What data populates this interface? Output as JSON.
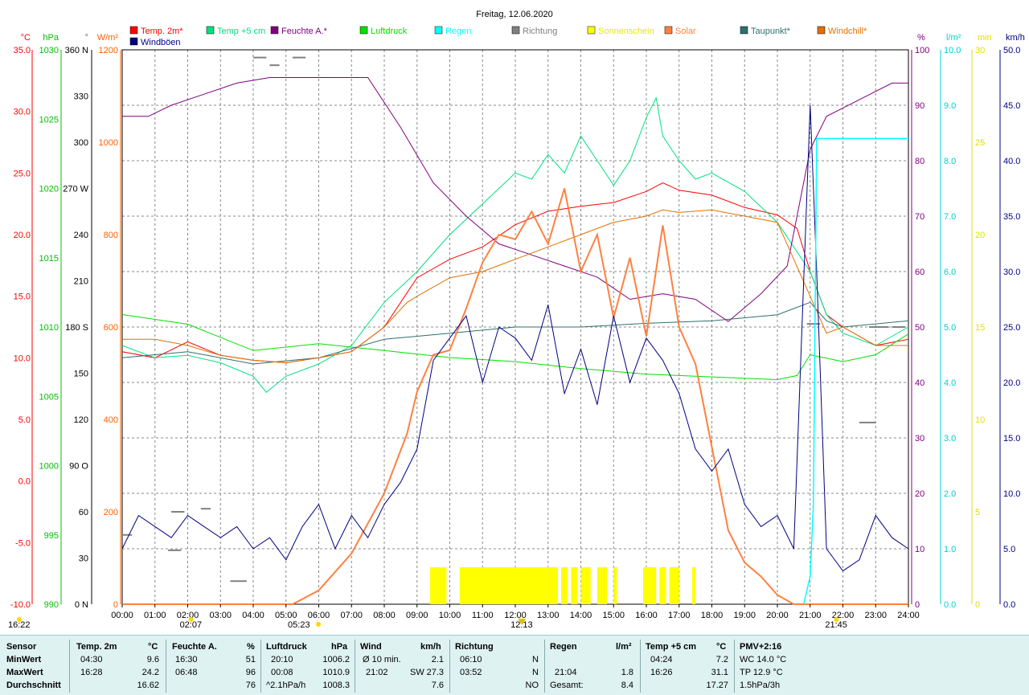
{
  "chart_data": {
    "type": "line",
    "title": "Freitag, 12.06.2020",
    "x_axis": {
      "ticks": [
        "00:00",
        "01:00",
        "02:00",
        "03:00",
        "04:00",
        "05:00",
        "06:00",
        "07:00",
        "08:00",
        "09:00",
        "10:00",
        "11:00",
        "12:00",
        "13:00",
        "14:00",
        "15:00",
        "16:00",
        "17:00",
        "18:00",
        "19:00",
        "20:00",
        "21:00",
        "22:00",
        "23:00",
        "24:00"
      ],
      "range_hours": [
        0,
        24
      ]
    },
    "legend": [
      {
        "name": "Temp. 2m*",
        "color": "#ff0000"
      },
      {
        "name": "Windböen",
        "color": "#000080"
      },
      {
        "name": "Temp +5 cm",
        "color": "#00e080"
      },
      {
        "name": "Feuchte A.*",
        "color": "#800080"
      },
      {
        "name": "Luftdruck",
        "color": "#00e000"
      },
      {
        "name": "Regen",
        "color": "#00ffff"
      },
      {
        "name": "Richtung",
        "color": "#808080"
      },
      {
        "name": "Sonnenschein",
        "color": "#ffff00"
      },
      {
        "name": "Solar",
        "color": "#ff8040"
      },
      {
        "name": "Taupunkt*",
        "color": "#2f6f6f"
      },
      {
        "name": "Windchill*",
        "color": "#e07000"
      }
    ],
    "left_axes": [
      {
        "unit": "°C",
        "color": "#ff0000",
        "ticks": [
          "35.0",
          "30.0",
          "25.0",
          "20.0",
          "15.0",
          "10.0",
          "5.0",
          "0.0",
          "-5.0",
          "-10.0"
        ]
      },
      {
        "unit": "hPa",
        "color": "#00c000",
        "ticks": [
          "1030",
          "1025",
          "1020",
          "1015",
          "1010",
          "1005",
          "1000",
          "995",
          "990"
        ]
      },
      {
        "unit": "°",
        "color": "#000000",
        "ticks": [
          "360 N",
          "330",
          "300",
          "270 W",
          "240",
          "210",
          "180 S",
          "150",
          "120",
          "90  O",
          "60",
          "30",
          "0   N"
        ]
      },
      {
        "unit": "W/m²",
        "color": "#ff6000",
        "ticks": [
          "1200",
          "1000",
          "800",
          "600",
          "400",
          "200",
          "0"
        ]
      }
    ],
    "right_axes": [
      {
        "unit": "%",
        "color": "#800080",
        "ticks": [
          "100",
          "90",
          "80",
          "70",
          "60",
          "50",
          "40",
          "30",
          "20",
          "10",
          "0"
        ]
      },
      {
        "unit": "l/m²",
        "color": "#00d0d0",
        "ticks": [
          "10.0",
          "9.0",
          "8.0",
          "7.0",
          "6.0",
          "5.0",
          "4.0",
          "3.0",
          "2.0",
          "1.0",
          "0.0"
        ]
      },
      {
        "unit": "min",
        "color": "#e0e000",
        "ticks": [
          "30",
          "25",
          "20",
          "15",
          "10",
          "5",
          "0"
        ]
      },
      {
        "unit": "km/h",
        "color": "#000080",
        "ticks": [
          "50.0",
          "45.0",
          "40.0",
          "35.0",
          "30.0",
          "25.0",
          "20.0",
          "15.0",
          "10.0",
          "5.0",
          "0.0"
        ]
      }
    ],
    "series": [
      {
        "name": "Temp. 2m*",
        "axis": "°C",
        "color": "#ff0000",
        "x": [
          0,
          1,
          2,
          3,
          4,
          5,
          6,
          7,
          8,
          9,
          10,
          11,
          12,
          13,
          14,
          15,
          16,
          16.5,
          17,
          18,
          19,
          20,
          20.6,
          21,
          21.5,
          22,
          23,
          24
        ],
        "y": [
          10.5,
          10.0,
          11.3,
          10.2,
          9.8,
          9.6,
          10.0,
          10.5,
          12.5,
          16.5,
          18.0,
          19.0,
          20.8,
          21.9,
          22.3,
          22.6,
          23.5,
          24.2,
          23.6,
          23.2,
          22.2,
          21.6,
          20.5,
          17.0,
          13.5,
          12.5,
          11.0,
          11.5
        ]
      },
      {
        "name": "Temp +5 cm",
        "axis": "°C",
        "color": "#00e080",
        "x": [
          0,
          1,
          2,
          3,
          4,
          4.4,
          5,
          6,
          7,
          8,
          9,
          10,
          11,
          12,
          12.5,
          13,
          13.5,
          14,
          14.5,
          15,
          15.5,
          16,
          16.3,
          16.5,
          17,
          17.5,
          18,
          19,
          20,
          21,
          21.5,
          22,
          23,
          24
        ],
        "y": [
          11.0,
          10.0,
          10.2,
          9.6,
          8.5,
          7.2,
          8.5,
          9.5,
          11.0,
          14.5,
          17.0,
          20.0,
          22.5,
          25.0,
          24.5,
          26.5,
          25.0,
          28.0,
          26.0,
          24.0,
          26.0,
          29.5,
          31.1,
          28.0,
          26.0,
          24.5,
          25.0,
          23.5,
          21.0,
          17.0,
          13.5,
          12.0,
          11.0,
          12.5
        ]
      },
      {
        "name": "Feuchte A.*",
        "axis": "%",
        "color": "#800080",
        "x": [
          0,
          0.8,
          1.5,
          2.5,
          3.5,
          4.5,
          5.5,
          6.5,
          7.5,
          8.5,
          9.5,
          10.5,
          11.5,
          12.5,
          13.5,
          14.5,
          15.5,
          16.5,
          17.5,
          18.5,
          19.5,
          20.3,
          21,
          21.5,
          22.5,
          23.5,
          24
        ],
        "y": [
          88,
          88,
          90,
          92,
          94,
          95,
          95,
          95,
          95,
          86,
          76,
          70,
          65,
          63,
          61,
          59,
          55,
          56,
          55,
          51,
          56,
          61,
          82,
          88,
          91,
          94,
          94
        ]
      },
      {
        "name": "Luftdruck",
        "axis": "hPa",
        "color": "#00e000",
        "x": [
          0,
          2,
          4,
          6,
          8,
          10,
          12,
          14,
          16,
          18,
          20,
          20.6,
          21,
          22,
          23,
          24
        ],
        "y": [
          1010.9,
          1010.2,
          1008.3,
          1008.8,
          1008.3,
          1007.8,
          1007.5,
          1007.0,
          1006.6,
          1006.4,
          1006.2,
          1006.5,
          1008.0,
          1007.5,
          1008.0,
          1009.5
        ]
      },
      {
        "name": "Taupunkt*",
        "axis": "°C",
        "color": "#2f6f6f",
        "x": [
          0,
          2,
          4,
          6,
          8,
          10,
          12,
          14,
          16,
          18,
          20,
          21,
          21.5,
          22,
          24
        ],
        "y": [
          10.0,
          10.5,
          9.5,
          10.0,
          11.5,
          12.0,
          12.5,
          12.5,
          12.8,
          13.0,
          13.5,
          14.5,
          13.0,
          12.5,
          13.0
        ]
      },
      {
        "name": "Windchill*",
        "axis": "°C",
        "color": "#e07000",
        "x": [
          0,
          1,
          2,
          3,
          4,
          5,
          6,
          7,
          8,
          8.7,
          9,
          10,
          11,
          12,
          13,
          14,
          15,
          16,
          16.5,
          17,
          18,
          19,
          20,
          21,
          21.5,
          22,
          23,
          24
        ],
        "y": [
          11.5,
          11.5,
          11.0,
          10.2,
          9.8,
          9.6,
          10.0,
          10.5,
          12.5,
          14.5,
          15.0,
          16.5,
          17.0,
          18.0,
          19.0,
          20.0,
          21.0,
          21.5,
          22.0,
          21.8,
          22.0,
          21.5,
          21.0,
          15.0,
          12.0,
          12.5,
          11.0,
          11.0
        ]
      },
      {
        "name": "Solar",
        "axis": "W/m²",
        "color": "#ff8040",
        "x": [
          0,
          5.2,
          6,
          7,
          8,
          8.7,
          9,
          9.5,
          10,
          10.5,
          11,
          11.5,
          12,
          12.5,
          13,
          13.5,
          14,
          14.5,
          15,
          15.5,
          16,
          16.5,
          17,
          17.5,
          18,
          18.5,
          19,
          19.5,
          20,
          20.5,
          24
        ],
        "y": [
          0,
          0,
          30,
          110,
          240,
          370,
          460,
          540,
          550,
          640,
          740,
          800,
          790,
          850,
          780,
          900,
          720,
          800,
          620,
          750,
          580,
          820,
          600,
          520,
          340,
          160,
          90,
          60,
          20,
          0,
          0
        ]
      },
      {
        "name": "Windböen",
        "axis": "km/h",
        "color": "#000080",
        "x": [
          0,
          0.5,
          1,
          1.5,
          2,
          2.5,
          3,
          3.5,
          4,
          4.5,
          5,
          5.5,
          6,
          6.5,
          7,
          7.5,
          8,
          8.5,
          9,
          9.5,
          10,
          10.5,
          11,
          11.5,
          12,
          12.5,
          13,
          13.5,
          14,
          14.5,
          15,
          15.5,
          16,
          16.5,
          17,
          17.5,
          18,
          18.5,
          19,
          19.5,
          20,
          20.5,
          21,
          21.2,
          21.5,
          22,
          22.5,
          23,
          23.5,
          24
        ],
        "y": [
          5,
          8,
          7,
          6,
          8,
          7,
          6,
          7,
          5,
          6,
          4,
          7,
          9,
          5,
          8,
          6,
          9,
          11,
          14,
          22,
          24,
          26,
          20,
          25,
          24,
          22,
          27,
          19,
          23,
          18,
          26,
          20,
          24,
          22,
          19,
          14,
          12,
          14,
          9,
          7,
          8,
          5,
          45,
          30,
          5,
          3,
          4,
          8,
          6,
          5
        ]
      }
    ],
    "regen": {
      "name": "Regen",
      "axis": "l/m²",
      "color": "#00ffff",
      "x": [
        20.8,
        21.0,
        21.1,
        21.2,
        21.3,
        21.5,
        24
      ],
      "y": [
        0,
        0.5,
        1.8,
        8.4,
        8.4,
        8.4,
        8.4
      ]
    },
    "sunshine_intervals": [
      [
        9.4,
        9.9
      ],
      [
        10.3,
        13.3
      ],
      [
        13.4,
        13.6
      ],
      [
        13.7,
        13.9
      ],
      [
        14.0,
        14.3
      ],
      [
        14.5,
        14.8
      ],
      [
        15.0,
        15.1
      ],
      [
        15.9,
        16.3
      ],
      [
        16.4,
        16.6
      ],
      [
        16.7,
        17.0
      ],
      [
        17.4,
        17.5
      ]
    ],
    "richtung_steps": [
      {
        "x": [
          0,
          0.3
        ],
        "y": 45
      },
      {
        "x": [
          1.5,
          1.9
        ],
        "y": 60
      },
      {
        "x": [
          1.4,
          1.8
        ],
        "y": 35
      },
      {
        "x": [
          2.4,
          2.7
        ],
        "y": 62
      },
      {
        "x": [
          3.3,
          3.8
        ],
        "y": 15
      },
      {
        "x": [
          4.0,
          4.4
        ],
        "y": 355
      },
      {
        "x": [
          5.2,
          5.6
        ],
        "y": 355
      },
      {
        "x": [
          4.5,
          4.8
        ],
        "y": 350
      },
      {
        "x": [
          22.5,
          23.0
        ],
        "y": 118
      },
      {
        "x": [
          22.8,
          23.4
        ],
        "y": 180
      },
      {
        "x": [
          23.5,
          23.9
        ],
        "y": 180
      },
      {
        "x": [
          20.9,
          21.3
        ],
        "y": 182
      }
    ],
    "x_markers": [
      {
        "label": "16:22",
        "at": "left",
        "icon": "moon"
      },
      {
        "label": "02:07",
        "x": 2.1,
        "icon": "sunrise"
      },
      {
        "label": "05:23",
        "x": 5.4,
        "icon": "sun"
      },
      {
        "label": "12:13",
        "x": 12.2,
        "icon": "noon"
      },
      {
        "label": "21:45",
        "x": 21.8,
        "icon": "sunset"
      }
    ]
  },
  "stats": {
    "row_labels": [
      "Sensor",
      "MinWert",
      "MaxWert",
      "Durchschnitt"
    ],
    "temp2m": {
      "title": "Temp. 2m",
      "unit": "°C",
      "min_time": "04:30",
      "min": "9.6",
      "max_time": "16:28",
      "max": "24.2",
      "avg": "16.62"
    },
    "feuchte": {
      "title": "Feuchte A.",
      "unit": "%",
      "min_time": "16:30",
      "min": "51",
      "max_time": "06:48",
      "max": "96",
      "avg": "76"
    },
    "luftdruck": {
      "title": "Luftdruck",
      "unit": "hPa",
      "min_time": "20:10",
      "min": "1006.2",
      "max_time": "00:08",
      "max": "1010.9",
      "avg_label": "^2.1hPa/h",
      "avg": "1008.3"
    },
    "wind": {
      "title": "Wind",
      "unit": "km/h",
      "row1_label": "Ø 10 min.",
      "row1": "2.1",
      "row2_time": "21:02",
      "row2_dir": "SW",
      "row2": "27.3",
      "avg": "7.6"
    },
    "richtung": {
      "title": "Richtung",
      "row1_time": "06:10",
      "row1": "N",
      "row2_time": "03:52",
      "row2": "N",
      "avg": "NO"
    },
    "regen": {
      "title": "Regen",
      "unit": "l/m²",
      "max_time": "21:04",
      "max": "1.8",
      "total_label": "Gesamt:",
      "total": "8.4"
    },
    "temp5cm": {
      "title": "Temp +5 cm",
      "unit": "°C",
      "min_time": "04:24",
      "min": "7.2",
      "max_time": "16:26",
      "max": "31.1",
      "avg": "17.27"
    },
    "pmv": {
      "title": "PMV+2:16",
      "line1": "WC 14.0 °C",
      "line2": "TP 12.9 °C",
      "line3": "1.5hPa/3h"
    }
  }
}
